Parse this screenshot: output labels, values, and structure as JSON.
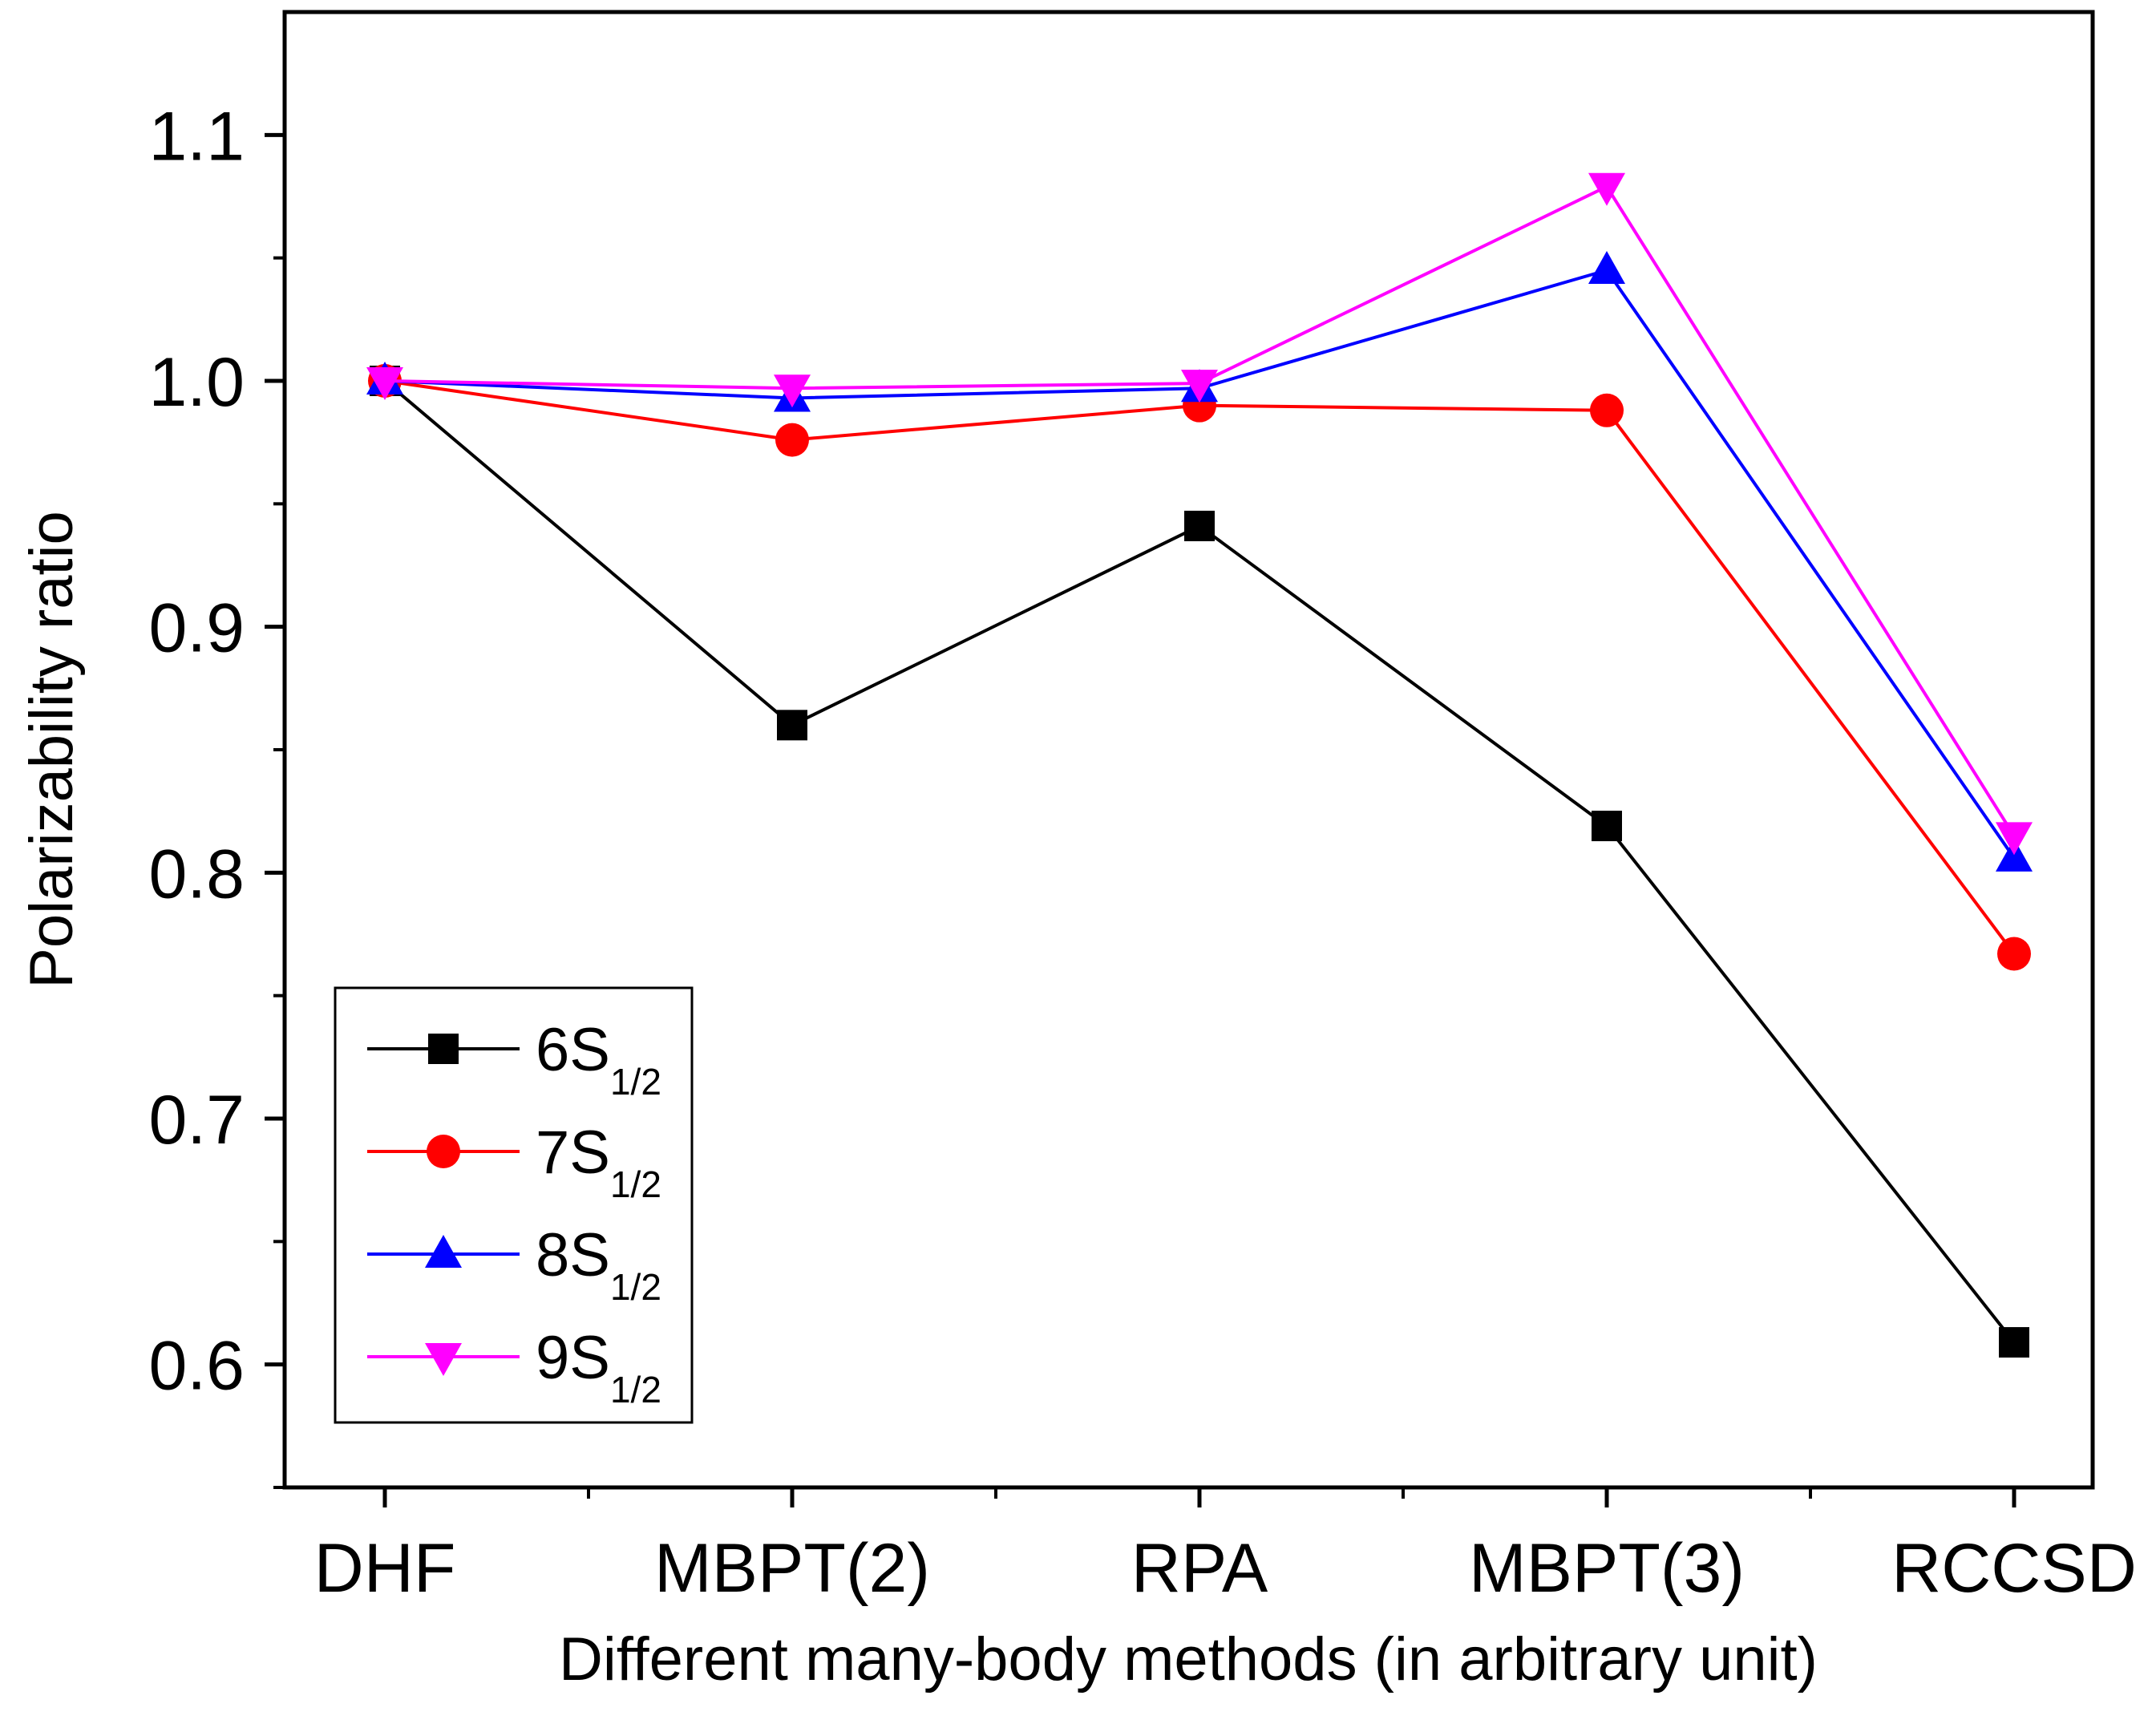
{
  "chart_data": {
    "type": "line",
    "title": "",
    "xlabel": "Different many-body methods (in arbitrary unit)",
    "ylabel": "Polarizability ratio",
    "categories": [
      "DHF",
      "MBPT(2)",
      "RPA",
      "MBPT(3)",
      "RCCSD"
    ],
    "ylim": [
      0.55,
      1.15
    ],
    "yticks": [
      "0.6",
      "0.7",
      "0.8",
      "0.9",
      "1.0",
      "1.1"
    ],
    "grid": false,
    "legend_position": "bottom-left",
    "series": [
      {
        "name": "6S",
        "subscript": "1/2",
        "color": "#000000",
        "marker": "square",
        "values": [
          1.0,
          0.86,
          0.941,
          0.819,
          0.609
        ]
      },
      {
        "name": "7S",
        "subscript": "1/2",
        "color": "#ff0000",
        "marker": "circle",
        "values": [
          1.0,
          0.976,
          0.99,
          0.988,
          0.767
        ]
      },
      {
        "name": "8S",
        "subscript": "1/2",
        "color": "#0000ff",
        "marker": "triangle-up",
        "values": [
          1.0,
          0.993,
          0.997,
          1.045,
          0.806
        ]
      },
      {
        "name": "9S",
        "subscript": "1/2",
        "color": "#ff00ff",
        "marker": "triangle-down",
        "values": [
          1.0,
          0.997,
          0.999,
          1.079,
          0.815
        ]
      }
    ]
  }
}
